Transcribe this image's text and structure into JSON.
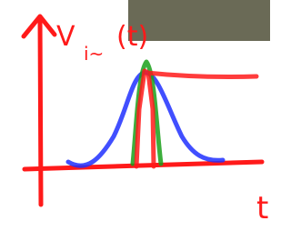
{
  "axis_labels": {
    "y_symbol": "V",
    "y_subscript": "i~",
    "y_argument": "(t)",
    "x": "t"
  }
}
